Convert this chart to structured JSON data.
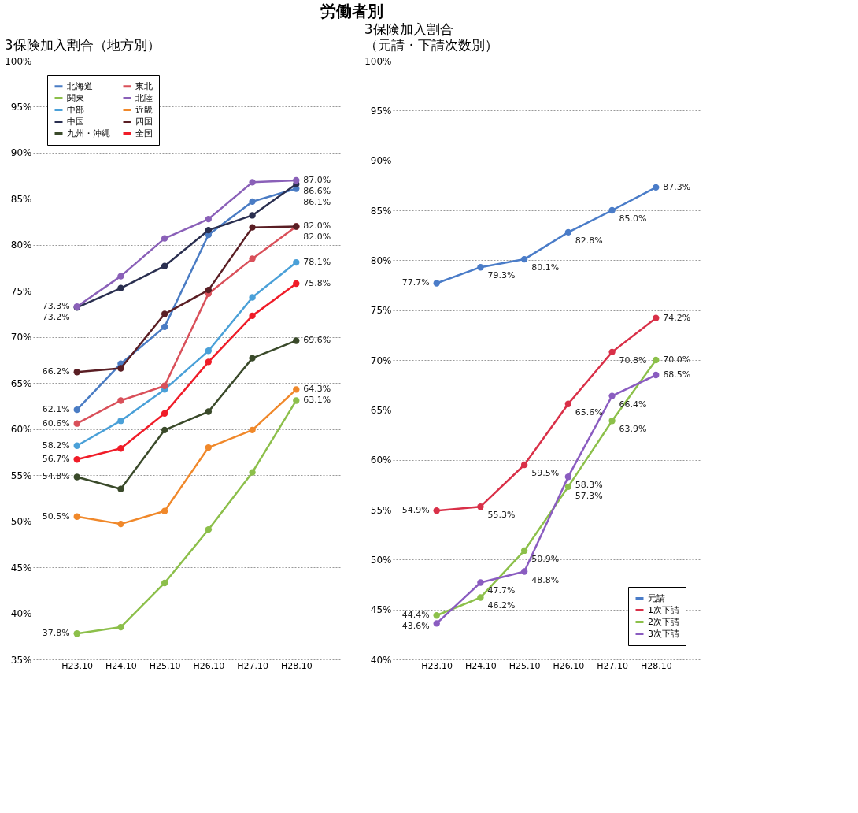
{
  "chart_data": [
    {
      "type": "line",
      "title": "3保険加入割合（地方別）",
      "annotations": [
        "労働者別"
      ],
      "categories": [
        "H23.10",
        "H24.10",
        "H25.10",
        "H26.10",
        "H27.10",
        "H28.10"
      ],
      "ylim": [
        35,
        100
      ],
      "yticks": [
        {
          "value": 35,
          "label": "35%"
        },
        {
          "value": 40,
          "label": "40%"
        },
        {
          "value": 45,
          "label": "45%"
        },
        {
          "value": 50,
          "label": "50%"
        },
        {
          "value": 55,
          "label": "55%"
        },
        {
          "value": 60,
          "label": "60%"
        },
        {
          "value": 65,
          "label": "65%"
        },
        {
          "value": 70,
          "label": "70%"
        },
        {
          "value": 75,
          "label": "75%"
        },
        {
          "value": 80,
          "label": "80%"
        },
        {
          "value": 85,
          "label": "85%"
        },
        {
          "value": 90,
          "label": "90%"
        },
        {
          "value": 95,
          "label": "95%"
        },
        {
          "value": 100,
          "label": "100%"
        }
      ],
      "grid": "y",
      "legend": "top left",
      "marker": "circle",
      "line_style": "solid",
      "series": [
        {
          "name": "北海道",
          "color": "#4a7cc4",
          "values": [
            62.1,
            67.1,
            71.1,
            81.1,
            84.7,
            86.1
          ],
          "value_labels": [
            "62.1%",
            null,
            null,
            null,
            null,
            "86.1%"
          ]
        },
        {
          "name": "関東",
          "color": "#8cbf4a",
          "values": [
            37.8,
            38.5,
            43.3,
            49.1,
            55.3,
            63.1
          ],
          "value_labels": [
            "37.8%",
            null,
            null,
            null,
            null,
            "63.1%"
          ]
        },
        {
          "name": "中部",
          "color": "#4aa0d8",
          "values": [
            58.2,
            60.9,
            64.3,
            68.5,
            74.3,
            78.1
          ],
          "value_labels": [
            "58.2%",
            null,
            null,
            null,
            null,
            "78.1%"
          ]
        },
        {
          "name": "中国",
          "color": "#2a2f50",
          "values": [
            73.2,
            75.3,
            77.7,
            81.6,
            83.2,
            86.6
          ],
          "value_labels": [
            "73.2%",
            null,
            null,
            null,
            null,
            "86.6%"
          ]
        },
        {
          "name": "九州・沖縄",
          "color": "#3a4a2a",
          "values": [
            54.8,
            53.5,
            59.9,
            61.9,
            67.7,
            69.6
          ],
          "value_labels": [
            "54.8%",
            null,
            null,
            null,
            null,
            "69.6%"
          ]
        },
        {
          "name": "東北",
          "color": "#d9505a",
          "values": [
            60.6,
            63.1,
            64.7,
            74.7,
            78.5,
            82.0
          ],
          "value_labels": [
            "60.6%",
            null,
            null,
            null,
            null,
            "82.0%"
          ]
        },
        {
          "name": "北陸",
          "color": "#8a60b8",
          "values": [
            73.3,
            76.6,
            80.7,
            82.8,
            86.8,
            87.0
          ],
          "value_labels": [
            "73.3%",
            null,
            null,
            null,
            null,
            "87.0%"
          ]
        },
        {
          "name": "近畿",
          "color": "#f0882a",
          "values": [
            50.5,
            49.7,
            51.1,
            58.0,
            59.9,
            64.3
          ],
          "value_labels": [
            "50.5%",
            null,
            null,
            null,
            null,
            "64.3%"
          ]
        },
        {
          "name": "四国",
          "color": "#5a1e24",
          "values": [
            66.2,
            66.6,
            72.5,
            75.1,
            81.9,
            82.0
          ],
          "value_labels": [
            "66.2%",
            null,
            null,
            null,
            null,
            "82.0%"
          ]
        },
        {
          "name": "全国",
          "color": "#f01c28",
          "values": [
            56.7,
            57.9,
            61.7,
            67.3,
            72.3,
            75.8
          ],
          "value_labels": [
            "56.7%",
            null,
            null,
            null,
            null,
            "75.8%"
          ]
        }
      ]
    },
    {
      "type": "line",
      "title": "3保険加入割合",
      "subtitle": "（元請・下請次数別）",
      "categories": [
        "H23.10",
        "H24.10",
        "H25.10",
        "H26.10",
        "H27.10",
        "H28.10"
      ],
      "ylim": [
        40,
        100
      ],
      "yticks": [
        {
          "value": 40,
          "label": "40%"
        },
        {
          "value": 45,
          "label": "45%"
        },
        {
          "value": 50,
          "label": "50%"
        },
        {
          "value": 55,
          "label": "55%"
        },
        {
          "value": 60,
          "label": "60%"
        },
        {
          "value": 65,
          "label": "65%"
        },
        {
          "value": 70,
          "label": "70%"
        },
        {
          "value": 75,
          "label": "75%"
        },
        {
          "value": 80,
          "label": "80%"
        },
        {
          "value": 85,
          "label": "85%"
        },
        {
          "value": 90,
          "label": "90%"
        },
        {
          "value": 95,
          "label": "95%"
        },
        {
          "value": 100,
          "label": "100%"
        }
      ],
      "grid": "y",
      "legend": "bottom right",
      "marker": "circle",
      "line_style": "solid",
      "series": [
        {
          "name": "元請",
          "color": "#4a7cc8",
          "values": [
            77.7,
            79.3,
            80.1,
            82.8,
            85.0,
            87.3
          ],
          "value_labels": [
            "77.7%",
            "79.3%",
            "80.1%",
            "82.8%",
            "85.0%",
            "87.3%"
          ]
        },
        {
          "name": "1次下請",
          "color": "#d93048",
          "values": [
            54.9,
            55.3,
            59.5,
            65.6,
            70.8,
            74.2
          ],
          "value_labels": [
            "54.9%",
            "55.3%",
            "59.5%",
            "65.6%",
            "70.8%",
            "74.2%"
          ]
        },
        {
          "name": "2次下請",
          "color": "#8cc04a",
          "values": [
            44.4,
            46.2,
            50.9,
            57.3,
            63.9,
            70.0
          ],
          "value_labels": [
            "44.4%",
            "46.2%",
            "50.9%",
            "57.3%",
            "63.9%",
            "70.0%"
          ]
        },
        {
          "name": "3次下請",
          "color": "#8a5cc0",
          "values": [
            43.6,
            47.7,
            48.8,
            58.3,
            66.4,
            68.5
          ],
          "value_labels": [
            "43.6%",
            "47.7%",
            "48.8%",
            "58.3%",
            "66.4%",
            "68.5%"
          ]
        }
      ]
    }
  ]
}
